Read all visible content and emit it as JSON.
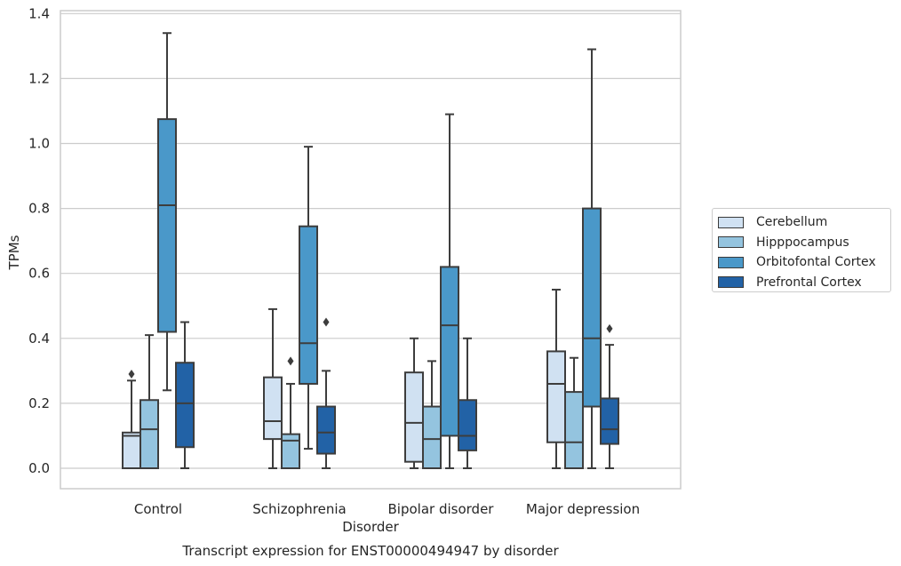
{
  "chart_data": {
    "type": "box",
    "title": "Transcript expression for ENST00000494947 by disorder",
    "xlabel": "Disorder",
    "ylabel": "TPMs",
    "ylim": [
      -0.065,
      1.41
    ],
    "yticks": [
      "0.0",
      "0.2",
      "0.4",
      "0.6",
      "0.8",
      "1.0",
      "1.2",
      "1.4"
    ],
    "grid": "horizontal",
    "legend_position": "right",
    "categories": [
      "Control",
      "Schizophrenia",
      "Bipolar disorder",
      "Major depression"
    ],
    "series": [
      {
        "name": "Cerebellum",
        "color": "#d0e1f2",
        "boxes": [
          {
            "whisker_low": 0.0,
            "q1": 0.0,
            "median": 0.1,
            "q3": 0.11,
            "whisker_high": 0.27,
            "outliers": [
              0.29
            ]
          },
          {
            "whisker_low": 0.0,
            "q1": 0.09,
            "median": 0.145,
            "q3": 0.28,
            "whisker_high": 0.49,
            "outliers": []
          },
          {
            "whisker_low": 0.0,
            "q1": 0.02,
            "median": 0.14,
            "q3": 0.295,
            "whisker_high": 0.4,
            "outliers": []
          },
          {
            "whisker_low": 0.0,
            "q1": 0.08,
            "median": 0.26,
            "q3": 0.36,
            "whisker_high": 0.55,
            "outliers": []
          }
        ]
      },
      {
        "name": "Hipppocampus",
        "color": "#94c4df",
        "boxes": [
          {
            "whisker_low": 0.0,
            "q1": 0.0,
            "median": 0.12,
            "q3": 0.21,
            "whisker_high": 0.41,
            "outliers": []
          },
          {
            "whisker_low": 0.0,
            "q1": 0.0,
            "median": 0.085,
            "q3": 0.105,
            "whisker_high": 0.26,
            "outliers": [
              0.33
            ]
          },
          {
            "whisker_low": 0.0,
            "q1": 0.0,
            "median": 0.09,
            "q3": 0.19,
            "whisker_high": 0.33,
            "outliers": []
          },
          {
            "whisker_low": 0.0,
            "q1": 0.0,
            "median": 0.08,
            "q3": 0.235,
            "whisker_high": 0.34,
            "outliers": []
          }
        ]
      },
      {
        "name": "Orbitofontal Cortex",
        "color": "#4a98c9",
        "boxes": [
          {
            "whisker_low": 0.24,
            "q1": 0.42,
            "median": 0.81,
            "q3": 1.075,
            "whisker_high": 1.34,
            "outliers": []
          },
          {
            "whisker_low": 0.06,
            "q1": 0.26,
            "median": 0.385,
            "q3": 0.745,
            "whisker_high": 0.99,
            "outliers": []
          },
          {
            "whisker_low": 0.0,
            "q1": 0.1,
            "median": 0.44,
            "q3": 0.62,
            "whisker_high": 1.09,
            "outliers": []
          },
          {
            "whisker_low": 0.0,
            "q1": 0.19,
            "median": 0.4,
            "q3": 0.8,
            "whisker_high": 1.29,
            "outliers": []
          }
        ]
      },
      {
        "name": "Prefrontal Cortex",
        "color": "#2262a6",
        "boxes": [
          {
            "whisker_low": 0.0,
            "q1": 0.065,
            "median": 0.2,
            "q3": 0.325,
            "whisker_high": 0.45,
            "outliers": []
          },
          {
            "whisker_low": 0.0,
            "q1": 0.045,
            "median": 0.11,
            "q3": 0.19,
            "whisker_high": 0.3,
            "outliers": [
              0.45
            ]
          },
          {
            "whisker_low": 0.0,
            "q1": 0.055,
            "median": 0.1,
            "q3": 0.21,
            "whisker_high": 0.4,
            "outliers": []
          },
          {
            "whisker_low": 0.0,
            "q1": 0.075,
            "median": 0.12,
            "q3": 0.215,
            "whisker_high": 0.38,
            "outliers": [
              0.43
            ]
          }
        ]
      }
    ]
  }
}
